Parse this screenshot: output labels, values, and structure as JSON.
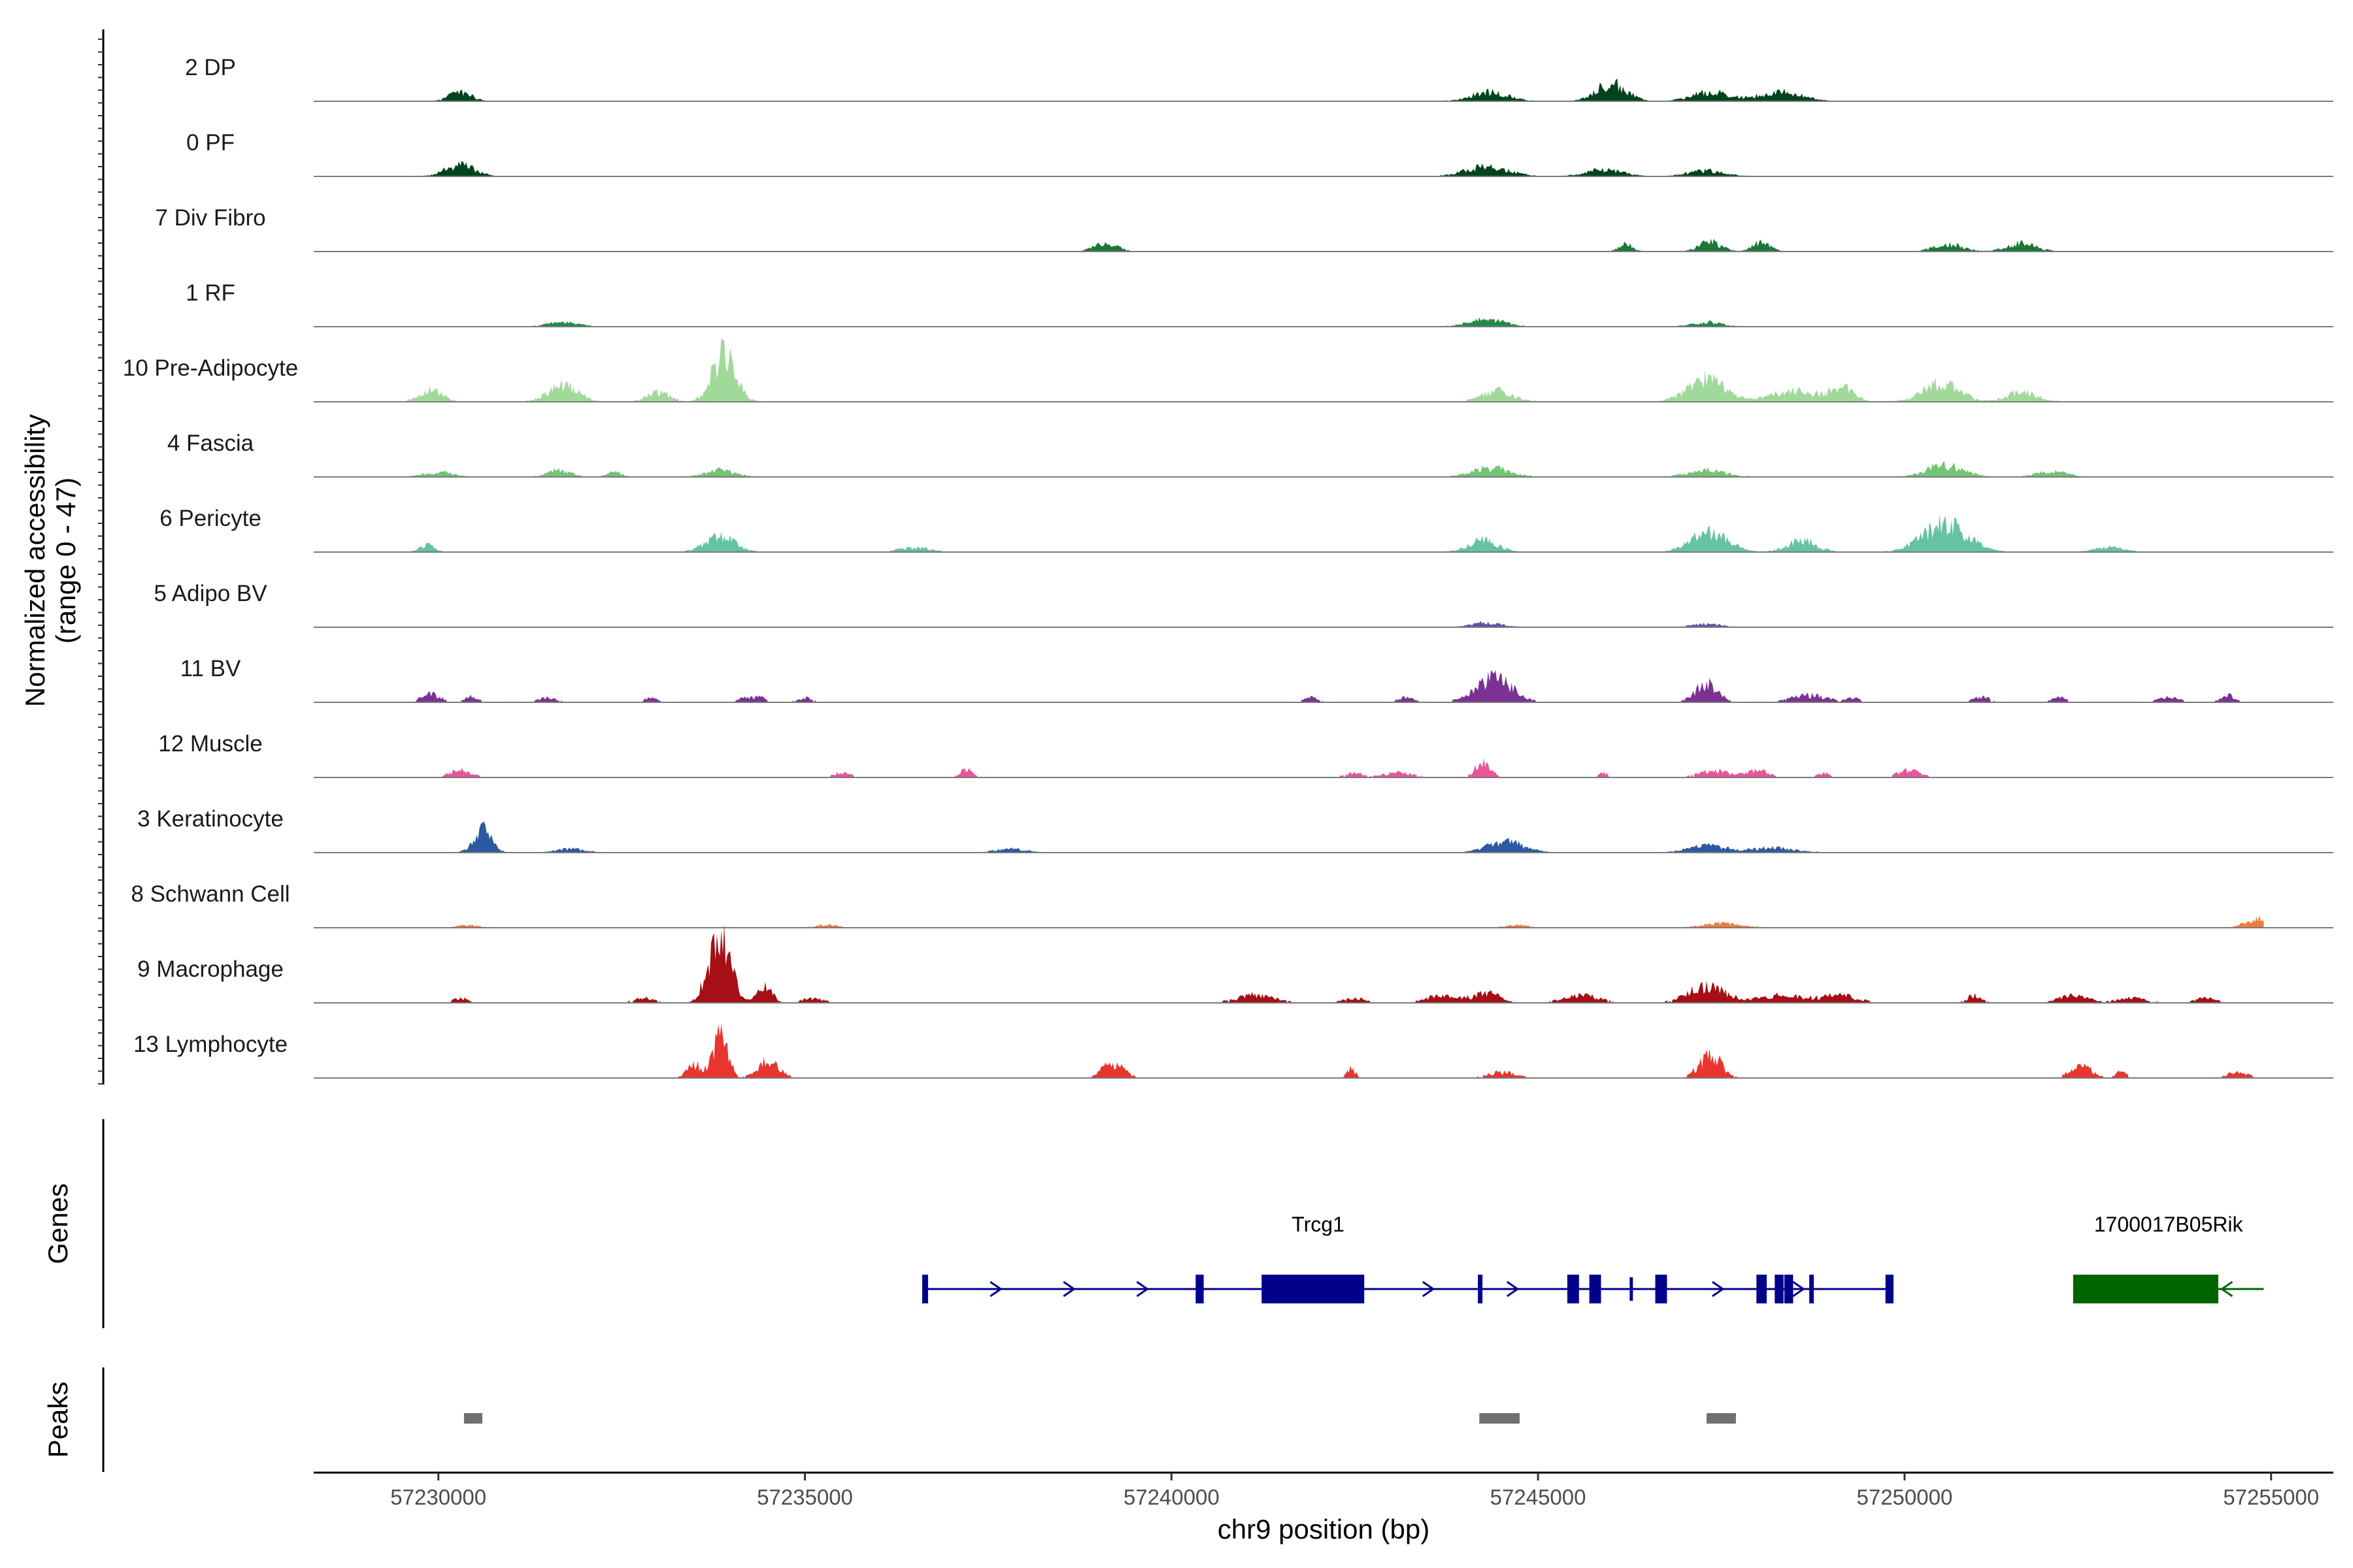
{
  "chart_data": {
    "type": "area",
    "ylabel_line1": "Normalized accessibility",
    "ylabel_line2": "(range 0 - 47)",
    "ylim": [
      0,
      47
    ],
    "xlabel": "chr9 position (bp)",
    "xlim": [
      57228300,
      57255850
    ],
    "x_ticks": [
      {
        "value": 57230000,
        "label": "57230000"
      },
      {
        "value": 57235000,
        "label": "57235000"
      },
      {
        "value": 57240000,
        "label": "57240000"
      },
      {
        "value": 57245000,
        "label": "57245000"
      },
      {
        "value": 57250000,
        "label": "57250000"
      },
      {
        "value": 57255000,
        "label": "57255000"
      }
    ],
    "data_range": [
      57228300,
      57254900
    ],
    "tracks": [
      {
        "name": "2 DP",
        "color": "#00441b",
        "noise": 0.02,
        "seed": 11,
        "peaks": [
          [
            57230300,
            2,
            150
          ],
          [
            57244350,
            2,
            250
          ],
          [
            57246000,
            4,
            200
          ],
          [
            57247350,
            2,
            250
          ],
          [
            57248300,
            2,
            300
          ]
        ]
      },
      {
        "name": "0 PF",
        "color": "#00441b",
        "noise": 0.03,
        "seed": 12,
        "peaks": [
          [
            57230300,
            2.5,
            200
          ],
          [
            57244300,
            2,
            300
          ],
          [
            57245900,
            1.5,
            250
          ],
          [
            57247300,
            1.2,
            250
          ]
        ]
      },
      {
        "name": "7 Div Fibro",
        "color": "#1b7837",
        "noise": 0.03,
        "seed": 13,
        "peaks": [
          [
            57239100,
            2,
            150
          ],
          [
            57246200,
            1.5,
            100
          ],
          [
            57247350,
            2,
            150
          ],
          [
            57248050,
            2,
            120
          ],
          [
            57250600,
            1.5,
            200
          ],
          [
            57251600,
            1.8,
            200
          ]
        ]
      },
      {
        "name": "1 RF",
        "color": "#238b45",
        "noise": 0.02,
        "seed": 14,
        "peaks": [
          [
            57231700,
            1,
            200
          ],
          [
            57244300,
            1.5,
            250
          ],
          [
            57247300,
            1,
            200
          ]
        ]
      },
      {
        "name": "10 Pre-Adipocyte",
        "color": "#a1d99b",
        "noise": 0.07,
        "seed": 15,
        "peaks": [
          [
            57229900,
            2.5,
            150
          ],
          [
            57231700,
            3.5,
            200
          ],
          [
            57233000,
            2,
            150
          ],
          [
            57233900,
            10,
            160
          ],
          [
            57244450,
            2.5,
            200
          ],
          [
            57247300,
            5,
            250
          ],
          [
            57248500,
            2.5,
            300
          ],
          [
            57249150,
            3,
            150
          ],
          [
            57250500,
            4,
            250
          ],
          [
            57251600,
            2,
            200
          ]
        ]
      },
      {
        "name": "4 Fascia",
        "color": "#74c476",
        "noise": 0.04,
        "seed": 16,
        "peaks": [
          [
            57230000,
            1,
            200
          ],
          [
            57231650,
            1.5,
            150
          ],
          [
            57232400,
            1,
            100
          ],
          [
            57233850,
            1.5,
            200
          ],
          [
            57244350,
            2,
            250
          ],
          [
            57247300,
            1.5,
            250
          ],
          [
            57250550,
            2.5,
            250
          ],
          [
            57252000,
            1.2,
            200
          ]
        ]
      },
      {
        "name": "6 Pericyte",
        "color": "#66c2a4",
        "noise": 0.04,
        "seed": 17,
        "peaks": [
          [
            57229850,
            1.5,
            100
          ],
          [
            57233850,
            3.5,
            200
          ],
          [
            57236500,
            1,
            200
          ],
          [
            57244250,
            2.5,
            200
          ],
          [
            57247350,
            4.5,
            250
          ],
          [
            57248600,
            2.5,
            200
          ],
          [
            57250550,
            6,
            300
          ],
          [
            57252800,
            1,
            200
          ]
        ]
      },
      {
        "name": "5 Adipo BV",
        "color": "#6a51a3",
        "noise": 0.02,
        "seed": 18,
        "peaks": [
          [
            57244300,
            1,
            200
          ],
          [
            57247300,
            0.7,
            200
          ]
        ]
      },
      {
        "name": "11 BV",
        "color": "#7b3294",
        "noise": 0.03,
        "seed": 19,
        "blocky": true,
        "peaks": [
          [
            57229900,
            2,
            120
          ],
          [
            57230450,
            1.3,
            80
          ],
          [
            57231500,
            1,
            120
          ],
          [
            57232900,
            1,
            80
          ],
          [
            57234200,
            1,
            100
          ],
          [
            57234400,
            1,
            80
          ],
          [
            57235000,
            1,
            100
          ],
          [
            57241900,
            1,
            100
          ],
          [
            57243200,
            1.2,
            100
          ],
          [
            57244400,
            5,
            250
          ],
          [
            57247300,
            4,
            150
          ],
          [
            57248700,
            1.5,
            250
          ],
          [
            57249300,
            1,
            80
          ],
          [
            57251050,
            1.3,
            100
          ],
          [
            57252100,
            1,
            100
          ],
          [
            57253600,
            1,
            150
          ],
          [
            57254400,
            1.5,
            100
          ]
        ]
      },
      {
        "name": "12 Muscle",
        "color": "#e7569a",
        "noise": 0.02,
        "seed": 20,
        "blocky": true,
        "peaks": [
          [
            57230300,
            1.5,
            150
          ],
          [
            57235500,
            1,
            120
          ],
          [
            57237200,
            2,
            80
          ],
          [
            57242500,
            1,
            120
          ],
          [
            57243100,
            1,
            200
          ],
          [
            57244250,
            3.5,
            100
          ],
          [
            57245900,
            1,
            60
          ],
          [
            57247400,
            1.5,
            200
          ],
          [
            57248000,
            1.5,
            150
          ],
          [
            57248900,
            1,
            80
          ],
          [
            57250050,
            1.5,
            150
          ]
        ]
      },
      {
        "name": "3 Keratinocyte",
        "color": "#2c5aa0",
        "noise": 0.03,
        "seed": 21,
        "peaks": [
          [
            57230600,
            5,
            120
          ],
          [
            57231800,
            0.8,
            200
          ],
          [
            57237800,
            0.8,
            200
          ],
          [
            57244550,
            2.5,
            250
          ],
          [
            57247300,
            1.5,
            250
          ],
          [
            57248200,
            1,
            300
          ]
        ]
      },
      {
        "name": "8 Schwann Cell",
        "color": "#f07b3f",
        "noise": 0.03,
        "seed": 22,
        "peaks": [
          [
            57230400,
            0.5,
            150
          ],
          [
            57235300,
            0.6,
            150
          ],
          [
            57244700,
            0.6,
            150
          ],
          [
            57247500,
            1,
            250
          ],
          [
            57254800,
            2,
            150
          ]
        ]
      },
      {
        "name": "9 Macrophage",
        "color": "#a50f15",
        "noise": 0.05,
        "seed": 23,
        "blocky": true,
        "peaks": [
          [
            57230300,
            1,
            100
          ],
          [
            57232800,
            1,
            150
          ],
          [
            57233700,
            2,
            80
          ],
          [
            57233850,
            13,
            150
          ],
          [
            57234450,
            3.5,
            100
          ],
          [
            57235100,
            1,
            150
          ],
          [
            57241150,
            1.6,
            250
          ],
          [
            57242500,
            1,
            150
          ],
          [
            57243700,
            1.6,
            200
          ],
          [
            57244300,
            2,
            200
          ],
          [
            57245600,
            1.6,
            250
          ],
          [
            57247300,
            3.5,
            250
          ],
          [
            57248300,
            1.6,
            300
          ],
          [
            57249100,
            1.6,
            250
          ],
          [
            57250950,
            1.5,
            100
          ],
          [
            57252300,
            1.5,
            200
          ],
          [
            57253100,
            1,
            200
          ],
          [
            57254100,
            1,
            150
          ]
        ]
      },
      {
        "name": "13 Lymphocyte",
        "color": "#e8352e",
        "noise": 0.01,
        "seed": 24,
        "blocky": true,
        "peaks": [
          [
            57233500,
            3,
            100
          ],
          [
            57233850,
            9,
            100
          ],
          [
            57234500,
            3.5,
            150
          ],
          [
            57239200,
            3,
            150
          ],
          [
            57242450,
            2,
            60
          ],
          [
            57244500,
            1.2,
            200
          ],
          [
            57247350,
            5,
            150
          ],
          [
            57252400,
            2.5,
            150
          ],
          [
            57252950,
            1.2,
            80
          ],
          [
            57254550,
            1.5,
            120
          ]
        ]
      }
    ],
    "genes_label": "Genes",
    "genes": [
      {
        "name": "Trcg1",
        "strand": "+",
        "color": "#00008b",
        "start": 57236600,
        "end": 57249850,
        "exons": [
          [
            57236600,
            57236680
          ],
          [
            57240330,
            57240440
          ],
          [
            57241230,
            57242630
          ],
          [
            57244180,
            57244230
          ],
          [
            57245400,
            57245560
          ],
          [
            57245700,
            57245860
          ],
          [
            57246600,
            57246760
          ],
          [
            57247980,
            57248120
          ],
          [
            57248230,
            57248350
          ],
          [
            57248360,
            57248480
          ],
          [
            57248700,
            57248760
          ],
          [
            57249740,
            57249850
          ]
        ],
        "small_ticks": [
          57246250
        ],
        "arrows": [
          57237600,
          57238600,
          57239600,
          57243500,
          57244650,
          57247450,
          57248550
        ]
      },
      {
        "name": "1700017B05Rik",
        "strand": "-",
        "color": "#006400",
        "start": 57252300,
        "end": 57254900,
        "exons": [
          [
            57252300,
            57254280
          ]
        ],
        "arrows": [
          57254400
        ]
      }
    ],
    "peaks_label": "Peaks",
    "peaks_color": "#707070",
    "peak_regions": [
      [
        57230350,
        57230600
      ],
      [
        57244200,
        57244750
      ],
      [
        57247300,
        57247700
      ]
    ]
  }
}
